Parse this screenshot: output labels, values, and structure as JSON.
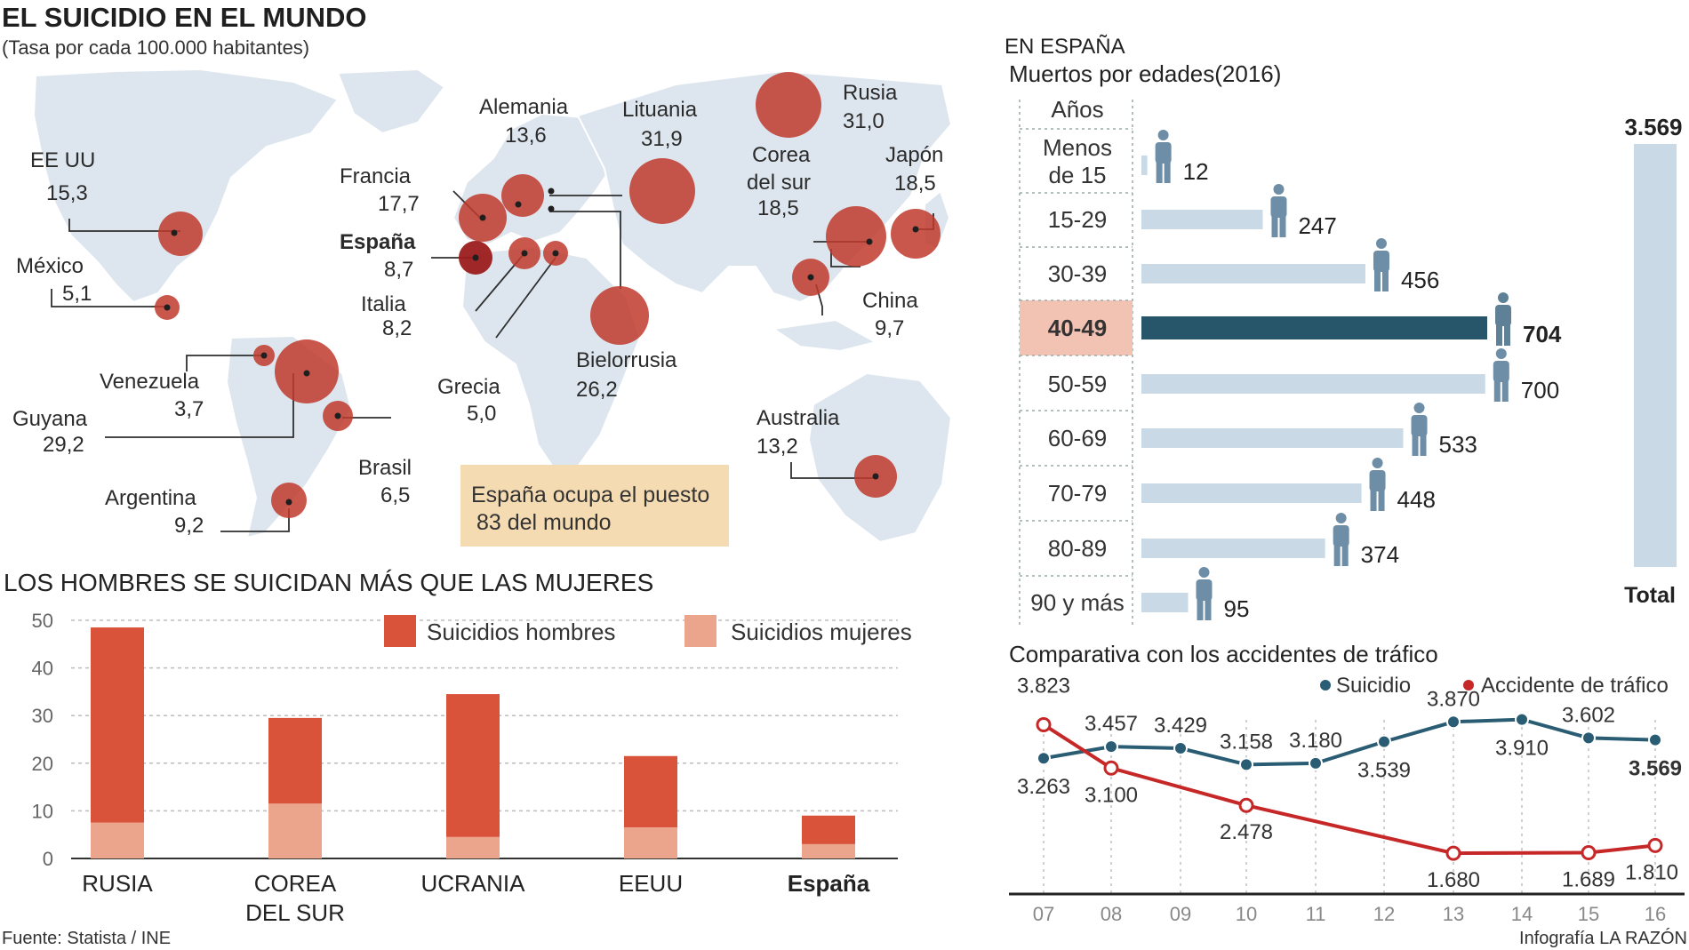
{
  "header": {
    "title": "EL SUICIDIO EN EL MUNDO",
    "subtitle": "(Tasa por cada 100.000 habitantes)"
  },
  "colors": {
    "map_land": "#dde6ee",
    "bubble": "#c0392b",
    "bubble_spain": "#9b1c1c",
    "men": "#d9533a",
    "women": "#eca58d",
    "bar_light": "#c9dae6",
    "bar_dark": "#27566b",
    "suicide_line": "#2a5d74",
    "traffic_line": "#c62828",
    "highlight_bg": "#f2c3b3",
    "note_bg": "#f5dbb1"
  },
  "world_map": {
    "countries": [
      {
        "name": "EE UU",
        "value": "15,3"
      },
      {
        "name": "México",
        "value": "5,1"
      },
      {
        "name": "Venezuela",
        "value": "3,7"
      },
      {
        "name": "Guyana",
        "value": "29,2"
      },
      {
        "name": "Brasil",
        "value": "6,5"
      },
      {
        "name": "Argentina",
        "value": "9,2"
      },
      {
        "name": "Francia",
        "value": "17,7"
      },
      {
        "name": "España",
        "value": "8,7"
      },
      {
        "name": "Italia",
        "value": "8,2"
      },
      {
        "name": "Grecia",
        "value": "5,0"
      },
      {
        "name": "Alemania",
        "value": "13,6"
      },
      {
        "name": "Lituania",
        "value": "31,9"
      },
      {
        "name": "Bielorrusia",
        "value": "26,2"
      },
      {
        "name": "Rusia",
        "value": "31,0"
      },
      {
        "name": "Corea del sur",
        "value": "18,5"
      },
      {
        "name": "Japón",
        "value": "18,5"
      },
      {
        "name": "China",
        "value": "9,7"
      },
      {
        "name": "Australia",
        "value": "13,2"
      }
    ],
    "note": [
      "España ocupa el puesto",
      "83 del mundo"
    ]
  },
  "gender_chart": {
    "heading": "LOS HOMBRES SE SUICIDAN MÁS QUE LAS MUJERES",
    "legend": [
      "Suicidios hombres",
      "Suicidios mujeres"
    ]
  },
  "spain": {
    "heading": "EN ESPAÑA",
    "subheading": "Muertos por edades(2016)",
    "col_header": "Años",
    "total_value": "3.569",
    "total_label": "Total",
    "traffic_heading": "Comparativa con los accidentes de tráfico",
    "traffic_legend": [
      "Suicidio",
      "Accidente de tráfico"
    ]
  },
  "footer": {
    "source": "Fuente: Statista / INE",
    "credit": "Infografía LA RAZÓN"
  },
  "chart_data": [
    {
      "type": "bar",
      "stacked": true,
      "categories": [
        "RUSIA",
        "COREA DEL SUR",
        "UCRANIA",
        "EEUU",
        "España"
      ],
      "series": [
        {
          "name": "Suicidios hombres",
          "values": [
            41,
            18,
            30,
            15,
            6
          ]
        },
        {
          "name": "Suicidios mujeres",
          "values": [
            7.5,
            11.5,
            4.5,
            6.5,
            3
          ]
        }
      ],
      "yticks": [
        0,
        10,
        20,
        30,
        40,
        50
      ],
      "ylim": [
        0,
        50
      ],
      "grid": true,
      "legend": "top-right"
    },
    {
      "type": "bar",
      "orientation": "horizontal",
      "categories": [
        "Menos de 15",
        "15-29",
        "30-39",
        "40-49",
        "50-59",
        "60-69",
        "70-79",
        "80-89",
        "90 y más"
      ],
      "values": [
        12,
        247,
        456,
        704,
        700,
        533,
        448,
        374,
        95
      ],
      "value_labels": [
        "12",
        "247",
        "456",
        "704",
        "700",
        "533",
        "448",
        "374",
        "95"
      ],
      "highlight": "40-49",
      "total": 3569
    },
    {
      "type": "line",
      "x": [
        "07",
        "08",
        "09",
        "10",
        "11",
        "12",
        "13",
        "14",
        "15",
        "16"
      ],
      "series": [
        {
          "name": "Suicidio",
          "values": [
            3263,
            3457,
            3429,
            3158,
            3180,
            3539,
            3870,
            3910,
            3602,
            3569
          ],
          "labels": [
            "3.263",
            "3.457",
            "3.429",
            "3.158",
            "3.180",
            "3.539",
            "3.870",
            "3.910",
            "3.602",
            "3.569"
          ]
        },
        {
          "name": "Accidente de tráfico",
          "values": [
            3823,
            3100,
            null,
            2478,
            null,
            null,
            1680,
            null,
            1689,
            1810
          ],
          "labels": [
            "3.823",
            "3.100",
            "",
            "2.478",
            "",
            "",
            "1.680",
            "",
            "1.689",
            "1.810"
          ]
        }
      ]
    }
  ]
}
